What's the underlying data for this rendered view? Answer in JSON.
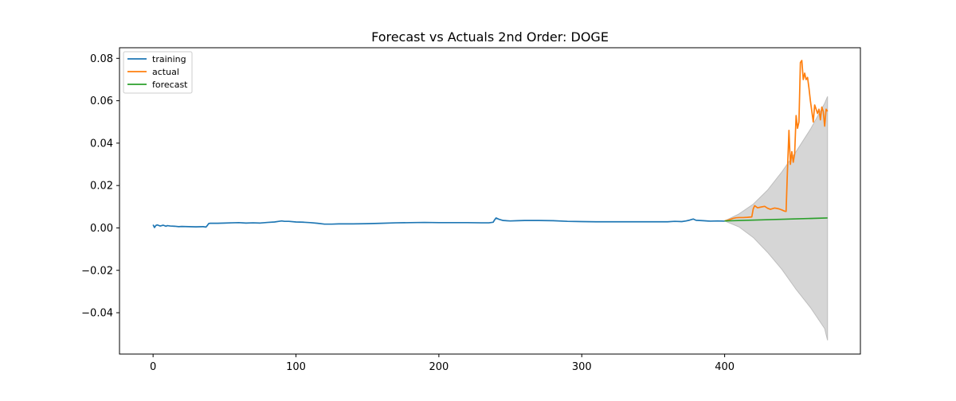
{
  "chart_data": {
    "type": "line",
    "title": "Forecast vs Actuals 2nd Order: DOGE",
    "xlabel": "",
    "ylabel": "",
    "xlim": [
      -23.5,
      495
    ],
    "ylim": [
      -0.0595,
      0.085
    ],
    "x_ticks": [
      0,
      100,
      200,
      300,
      400
    ],
    "x_tick_labels": [
      "0",
      "100",
      "200",
      "300",
      "400"
    ],
    "y_ticks": [
      -0.04,
      -0.02,
      0.0,
      0.02,
      0.04,
      0.06,
      0.08
    ],
    "y_tick_labels": [
      "−0.04",
      "−0.02",
      "0.00",
      "0.02",
      "0.04",
      "0.06",
      "0.08"
    ],
    "legend_position": "top-left",
    "grid": false,
    "series": [
      {
        "name": "training",
        "color": "#1f77b4",
        "x": [
          0,
          1,
          2,
          3,
          5,
          7,
          9,
          10,
          12,
          15,
          18,
          20,
          25,
          30,
          35,
          37,
          38,
          39,
          40,
          45,
          50,
          55,
          60,
          65,
          70,
          75,
          80,
          85,
          88,
          90,
          92,
          95,
          100,
          105,
          110,
          115,
          120,
          125,
          130,
          140,
          150,
          160,
          170,
          180,
          190,
          200,
          210,
          220,
          230,
          235,
          238,
          239,
          240,
          242,
          245,
          250,
          255,
          260,
          270,
          280,
          290,
          300,
          310,
          320,
          330,
          340,
          350,
          360,
          365,
          370,
          373,
          375,
          377,
          378,
          380,
          385,
          390,
          395,
          400
        ],
        "values": [
          0.0015,
          0.0002,
          0.0012,
          0.0014,
          0.0009,
          0.0013,
          0.0008,
          0.0011,
          0.0009,
          0.0008,
          0.0006,
          0.0007,
          0.0006,
          0.0005,
          0.0006,
          0.0004,
          0.0012,
          0.0021,
          0.0022,
          0.0022,
          0.0023,
          0.0024,
          0.0025,
          0.0023,
          0.0024,
          0.0023,
          0.0026,
          0.0028,
          0.0031,
          0.0033,
          0.0031,
          0.0031,
          0.0028,
          0.0027,
          0.0025,
          0.0022,
          0.0018,
          0.0018,
          0.0019,
          0.0019,
          0.002,
          0.0022,
          0.0024,
          0.0025,
          0.0026,
          0.0025,
          0.0025,
          0.0025,
          0.0024,
          0.0024,
          0.0027,
          0.0038,
          0.0047,
          0.0041,
          0.0035,
          0.0033,
          0.0034,
          0.0035,
          0.0035,
          0.0034,
          0.0031,
          0.003,
          0.0029,
          0.0029,
          0.0029,
          0.0029,
          0.0029,
          0.0029,
          0.0031,
          0.003,
          0.0033,
          0.0036,
          0.004,
          0.0042,
          0.0036,
          0.0034,
          0.0032,
          0.0033,
          0.0032
        ]
      },
      {
        "name": "actual",
        "color": "#ff7f0e",
        "x": [
          400,
          403,
          406,
          408,
          410,
          413,
          416,
          419,
          420,
          421,
          422,
          423,
          425,
          428,
          430,
          432,
          435,
          438,
          440,
          442,
          443,
          444,
          445,
          446,
          447,
          448,
          449,
          450,
          451,
          452,
          453,
          454,
          455,
          456,
          457,
          458,
          459,
          460,
          461,
          462,
          463,
          464,
          465,
          466,
          467,
          468,
          469,
          470,
          471,
          472
        ],
        "values": [
          0.0033,
          0.0038,
          0.0045,
          0.0048,
          0.0049,
          0.0049,
          0.005,
          0.0052,
          0.009,
          0.0105,
          0.01,
          0.0095,
          0.0098,
          0.0102,
          0.0093,
          0.0088,
          0.0094,
          0.009,
          0.0085,
          0.0079,
          0.0078,
          0.028,
          0.046,
          0.03,
          0.036,
          0.031,
          0.035,
          0.053,
          0.047,
          0.05,
          0.078,
          0.079,
          0.07,
          0.073,
          0.07,
          0.071,
          0.066,
          0.06,
          0.055,
          0.05,
          0.058,
          0.056,
          0.054,
          0.056,
          0.051,
          0.057,
          0.055,
          0.048,
          0.056,
          0.055
        ]
      },
      {
        "name": "forecast",
        "color": "#2ca02c",
        "x": [
          400,
          472
        ],
        "values": [
          0.0033,
          0.0047
        ]
      }
    ],
    "confidence_band": {
      "color": "#d6d6d6",
      "x": [
        400,
        410,
        420,
        430,
        440,
        450,
        460,
        470,
        472
      ],
      "upper": [
        0.0033,
        0.0066,
        0.0112,
        0.0178,
        0.0264,
        0.036,
        0.0465,
        0.0588,
        0.062
      ],
      "lower": [
        0.0033,
        0.0005,
        -0.0045,
        -0.0115,
        -0.0195,
        -0.029,
        -0.0375,
        -0.0475,
        -0.053
      ]
    }
  }
}
